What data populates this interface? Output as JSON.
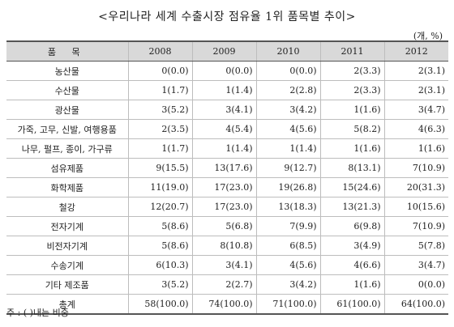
{
  "title": "<우리나라 세계 수출시장 점유율 1위 품목별 추이>",
  "unit": "(개, %)",
  "table": {
    "headers": [
      "품  목",
      "2008",
      "2009",
      "2010",
      "2011",
      "2012"
    ],
    "rows": [
      {
        "item": "농산물",
        "values": [
          "0(0.0)",
          "0(0.0)",
          "0(0.0)",
          "2(3.3)",
          "2(3.1)"
        ]
      },
      {
        "item": "수산물",
        "values": [
          "1(1.7)",
          "1(1.4)",
          "2(2.8)",
          "2(3.3)",
          "2(3.1)"
        ]
      },
      {
        "item": "광산물",
        "values": [
          "3(5.2)",
          "3(4.1)",
          "3(4.2)",
          "1(1.6)",
          "3(4.7)"
        ]
      },
      {
        "item": "가죽, 고무, 신발, 여행용품",
        "values": [
          "2(3.5)",
          "4(5.4)",
          "4(5.6)",
          "5(8.2)",
          "4(6.3)"
        ]
      },
      {
        "item": "나무, 펄프, 종이, 가구류",
        "values": [
          "1(1.7)",
          "1(1.4)",
          "1(1.4)",
          "1(1.6)",
          "1(1.6)"
        ]
      },
      {
        "item": "섬유제품",
        "values": [
          "9(15.5)",
          "13(17.6)",
          "9(12.7)",
          "8(13.1)",
          "7(10.9)"
        ]
      },
      {
        "item": "화학제품",
        "values": [
          "11(19.0)",
          "17(23.0)",
          "19(26.8)",
          "15(24.6)",
          "20(31.3)"
        ]
      },
      {
        "item": "철강",
        "values": [
          "12(20.7)",
          "17(23.0)",
          "13(18.3)",
          "13(21.3)",
          "10(15.6)"
        ]
      },
      {
        "item": "전자기계",
        "values": [
          "5(8.6)",
          "5(6.8)",
          "7(9.9)",
          "6(9.8)",
          "7(10.9)"
        ]
      },
      {
        "item": "비전자기계",
        "values": [
          "5(8.6)",
          "8(10.8)",
          "6(8.5)",
          "3(4.9)",
          "5(7.8)"
        ]
      },
      {
        "item": "수송기계",
        "values": [
          "6(10.3)",
          "3(4.1)",
          "4(5.6)",
          "4(6.6)",
          "3(4.7)"
        ]
      },
      {
        "item": "기타 제조품",
        "values": [
          "3(5.2)",
          "2(2.7)",
          "3(4.2)",
          "1(1.6)",
          "0(0.0)"
        ]
      },
      {
        "item": "총계",
        "values": [
          "58(100.0)",
          "74(100.0)",
          "71(100.0)",
          "61(100.0)",
          "64(100.0)"
        ]
      }
    ]
  },
  "note": "주 : (   )내는 비중",
  "colors": {
    "header_bg": "#d9d9d9",
    "rule": "#555555",
    "grid": "#bdbdbd"
  }
}
